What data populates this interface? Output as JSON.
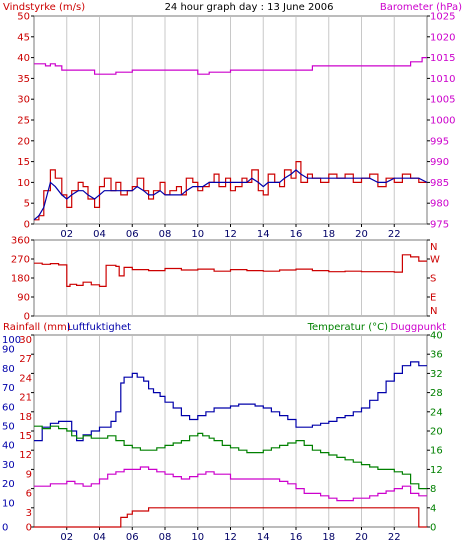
{
  "title": "24 hour graph day : 13 June 2006",
  "colors": {
    "red": "#cc0000",
    "blue": "#0000aa",
    "magenta": "#cc00cc",
    "green": "#008000",
    "grid": "#c8c8c8",
    "frame": "#7a7a7a",
    "tick_label": "#000066"
  },
  "chart_data": [
    {
      "type": "line",
      "name": "wind",
      "title": "24 hour graph day : 13 June 2006",
      "ylabel": "Vindstyrke (m/s)",
      "y2label": "Barometer (hPa)",
      "ylim": [
        0,
        50
      ],
      "yticks": [
        "0",
        "5",
        "10",
        "15",
        "20",
        "25",
        "30",
        "35",
        "40",
        "45",
        "50"
      ],
      "y2lim": [
        975,
        1025
      ],
      "y2ticks": [
        "975",
        "980",
        "985",
        "990",
        "995",
        "1000",
        "1005",
        "1010",
        "1015",
        "1020",
        "1025"
      ],
      "xlim": [
        0,
        24
      ],
      "xticks": [
        "02",
        "04",
        "06",
        "08",
        "10",
        "12",
        "14",
        "16",
        "18",
        "20",
        "22"
      ],
      "grid": true,
      "series": [
        {
          "color": "red",
          "axis": "left",
          "step": true,
          "x": [
            0,
            0.3,
            0.6,
            1,
            1.3,
            1.7,
            2,
            2.3,
            2.7,
            3,
            3.3,
            3.7,
            4,
            4.3,
            4.7,
            5,
            5.3,
            5.7,
            6,
            6.3,
            6.7,
            7,
            7.3,
            7.7,
            8,
            8.3,
            8.7,
            9,
            9.3,
            9.7,
            10,
            10.3,
            10.7,
            11,
            11.3,
            11.7,
            12,
            12.3,
            12.7,
            13,
            13.3,
            13.7,
            14,
            14.3,
            14.7,
            15,
            15.3,
            15.7,
            16,
            16.3,
            16.7,
            17,
            17.5,
            18,
            18.5,
            19,
            19.5,
            20,
            20.5,
            21,
            21.5,
            22,
            22.5,
            23,
            23.5
          ],
          "y": [
            1,
            2,
            8,
            13,
            11,
            7,
            4,
            8,
            10,
            9,
            6,
            4,
            9,
            11,
            8,
            10,
            7,
            8,
            9,
            11,
            8,
            6,
            8,
            10,
            7,
            8,
            9,
            7,
            11,
            10,
            8,
            9,
            10,
            12,
            9,
            11,
            8,
            9,
            11,
            10,
            13,
            8,
            7,
            12,
            10,
            9,
            13,
            11,
            15,
            10,
            12,
            11,
            10,
            12,
            11,
            12,
            10,
            11,
            12,
            9,
            11,
            10,
            12,
            11,
            10
          ]
        },
        {
          "color": "blue",
          "axis": "left",
          "step": false,
          "x": [
            0,
            0.3,
            0.6,
            1,
            1.3,
            1.7,
            2,
            2.3,
            2.7,
            3,
            3.3,
            3.7,
            4,
            4.3,
            4.7,
            5,
            5.3,
            5.7,
            6,
            6.3,
            6.7,
            7,
            7.3,
            7.7,
            8,
            8.3,
            8.7,
            9,
            9.3,
            9.7,
            10,
            10.3,
            10.7,
            11,
            11.3,
            11.7,
            12,
            12.3,
            12.7,
            13,
            13.3,
            13.7,
            14,
            14.3,
            14.7,
            15,
            15.3,
            15.7,
            16,
            16.3,
            16.7,
            17,
            17.5,
            18,
            18.5,
            19,
            19.5,
            20,
            20.5,
            21,
            21.5,
            22,
            22.5,
            23,
            23.5,
            24
          ],
          "y": [
            1,
            2,
            4,
            10,
            9,
            7,
            6,
            7,
            8,
            8,
            7,
            6,
            7,
            8,
            8,
            8,
            8,
            8,
            8,
            9,
            8,
            7,
            7,
            8,
            7,
            7,
            7,
            7,
            8,
            9,
            9,
            9,
            10,
            10,
            10,
            10,
            10,
            10,
            10,
            10,
            11,
            10,
            9,
            10,
            10,
            10,
            11,
            12,
            13,
            12,
            11,
            11,
            11,
            11,
            11,
            11,
            11,
            11,
            11,
            10,
            10,
            11,
            11,
            11,
            11,
            10
          ]
        },
        {
          "color": "magenta",
          "axis": "right",
          "step": true,
          "x": [
            0,
            0.7,
            1,
            1.3,
            1.7,
            3,
            3.7,
            5,
            6,
            7,
            8,
            10,
            10.7,
            12,
            14,
            16,
            17,
            18,
            20,
            22,
            22.5,
            23,
            23.3,
            23.7
          ],
          "y": [
            1013.5,
            1013,
            1013.5,
            1013,
            1012,
            1012,
            1011,
            1011.5,
            1012,
            1012,
            1012,
            1011,
            1011.5,
            1012,
            1012,
            1012,
            1013,
            1013,
            1013,
            1013,
            1013,
            1014,
            1014,
            1015
          ]
        }
      ]
    },
    {
      "type": "line",
      "name": "direction",
      "ylim": [
        0,
        360
      ],
      "yticks": [
        "0",
        "90",
        "180",
        "270",
        "360"
      ],
      "y2ticks": [
        "N",
        "E",
        "S",
        "W",
        "N"
      ],
      "xlim": [
        0,
        24
      ],
      "grid": true,
      "series": [
        {
          "color": "red",
          "axis": "left",
          "step": true,
          "x": [
            0,
            0.5,
            1,
            1.5,
            2,
            2.2,
            2.6,
            3,
            3.5,
            4,
            4.4,
            5,
            5.2,
            5.5,
            6,
            7,
            8,
            9,
            10,
            11,
            12,
            13,
            14,
            15,
            16,
            17,
            18,
            19,
            20,
            21,
            22,
            22.5,
            23,
            23.5
          ],
          "y": [
            250,
            245,
            248,
            242,
            140,
            150,
            145,
            160,
            148,
            140,
            240,
            235,
            190,
            230,
            220,
            215,
            225,
            218,
            222,
            212,
            220,
            215,
            212,
            218,
            222,
            215,
            210,
            212,
            210,
            210,
            208,
            290,
            280,
            260
          ]
        }
      ]
    },
    {
      "type": "line",
      "name": "weather",
      "ylabel": "Rainfall (mm)",
      "ylabel2": "Luftfuktighet",
      "y2label": "Temperatur (°C)",
      "y2label2": "Duggpunkt",
      "ylim": [
        0,
        100
      ],
      "yticks_rain": [
        "0",
        "3",
        "6",
        "9",
        "12",
        "15",
        "18",
        "21",
        "24",
        "27",
        "30"
      ],
      "yticks_humidity": [
        "0",
        "10",
        "20",
        "30",
        "40",
        "50",
        "60",
        "70",
        "80",
        "90",
        "100"
      ],
      "y2lim": [
        0,
        40
      ],
      "y2ticks": [
        "0",
        "4",
        "8",
        "12",
        "16",
        "20",
        "24",
        "28",
        "32",
        "36",
        "40"
      ],
      "xlim": [
        0,
        24
      ],
      "xticks": [
        "02",
        "04",
        "06",
        "08",
        "10",
        "12",
        "14",
        "16",
        "18",
        "20",
        "22"
      ],
      "grid": true,
      "series": [
        {
          "color": "red",
          "axis": "rain",
          "step": true,
          "x": [
            0,
            5,
            5.3,
            5.7,
            6,
            7,
            8,
            9,
            10,
            12,
            14,
            16,
            18,
            20,
            22,
            23,
            23.5,
            24
          ],
          "y": [
            0,
            0,
            1.5,
            2,
            2.5,
            3,
            3,
            3,
            3,
            3,
            3,
            3,
            3,
            3,
            3,
            3,
            0,
            0
          ]
        },
        {
          "color": "blue",
          "axis": "humidity",
          "step": true,
          "x": [
            0,
            0.5,
            1,
            1.5,
            2,
            2.3,
            2.6,
            3,
            3.5,
            4,
            4.3,
            4.7,
            5,
            5.3,
            5.5,
            6,
            6.3,
            6.7,
            7,
            7.3,
            7.7,
            8,
            8.5,
            9,
            9.5,
            10,
            10.5,
            11,
            11.5,
            12,
            12.5,
            13,
            13.5,
            14,
            14.5,
            15,
            15.5,
            16,
            16.5,
            17,
            17.5,
            18,
            18.5,
            19,
            19.5,
            20,
            20.5,
            21,
            21.5,
            22,
            22.5,
            23,
            23.5
          ],
          "y": [
            45,
            52,
            54,
            55,
            55,
            50,
            45,
            48,
            50,
            52,
            52,
            55,
            60,
            75,
            78,
            80,
            78,
            76,
            72,
            70,
            68,
            65,
            62,
            58,
            56,
            58,
            60,
            62,
            62,
            63,
            64,
            64,
            63,
            62,
            60,
            58,
            56,
            52,
            52,
            53,
            54,
            55,
            57,
            58,
            60,
            62,
            66,
            70,
            76,
            80,
            84,
            86,
            84
          ]
        },
        {
          "color": "green",
          "axis": "right",
          "step": true,
          "x": [
            0,
            0.5,
            1,
            1.5,
            2,
            2.3,
            2.6,
            3,
            3.5,
            4,
            4.5,
            5,
            5.5,
            6,
            6.5,
            7,
            7.5,
            8,
            8.5,
            9,
            9.5,
            10,
            10.3,
            10.7,
            11,
            11.5,
            12,
            12.5,
            13,
            13.5,
            14,
            14.5,
            15,
            15.5,
            16,
            16.5,
            17,
            17.5,
            18,
            18.5,
            19,
            19.5,
            20,
            20.5,
            21,
            21.5,
            22,
            22.5,
            23,
            23.5
          ],
          "y": [
            21,
            20.5,
            21,
            20.5,
            20,
            19,
            18.5,
            19,
            18.5,
            18.5,
            19,
            18,
            17,
            16.5,
            16,
            16,
            16.5,
            17,
            17.5,
            18,
            19,
            19.5,
            19,
            18.5,
            18,
            17,
            16.5,
            16,
            15.5,
            15.5,
            16,
            16.5,
            17,
            17.5,
            18,
            17,
            16,
            15.5,
            15,
            14.5,
            14,
            13.5,
            13,
            12.5,
            12,
            12,
            11.5,
            11,
            9,
            8
          ]
        },
        {
          "color": "magenta",
          "axis": "right",
          "step": true,
          "x": [
            0,
            0.5,
            1,
            2,
            2.5,
            3,
            3.5,
            4,
            4.5,
            5,
            5.5,
            6,
            6.5,
            7,
            7.5,
            8,
            8.5,
            9,
            9.5,
            10,
            10.5,
            11,
            12,
            13,
            14,
            14.5,
            15,
            15.5,
            16,
            16.5,
            17,
            17.5,
            18,
            18.5,
            19,
            19.5,
            20,
            20.5,
            21,
            21.5,
            22,
            22.5,
            23,
            23.5
          ],
          "y": [
            8.5,
            8.5,
            9,
            9.5,
            9,
            8.5,
            9,
            10,
            11,
            11.5,
            12,
            12,
            12.5,
            12,
            11.5,
            11,
            10.5,
            10,
            10.5,
            11,
            11.5,
            11,
            10,
            10,
            10,
            10,
            9.5,
            9,
            8,
            7,
            7,
            6.5,
            6,
            5.5,
            5.5,
            6,
            6,
            6.5,
            7,
            7.5,
            8,
            8.5,
            7,
            6.5
          ]
        }
      ]
    }
  ]
}
